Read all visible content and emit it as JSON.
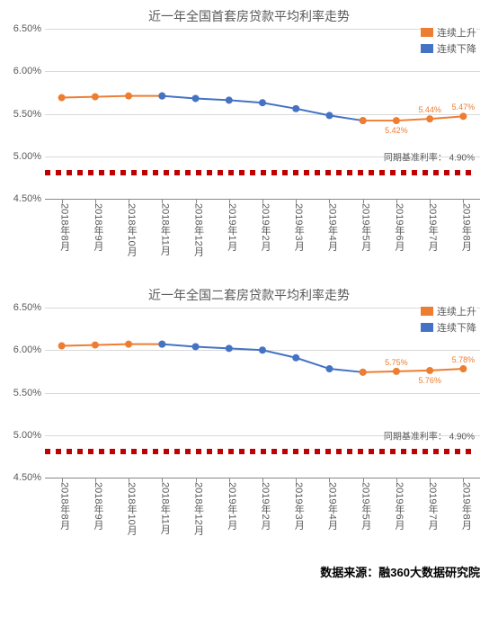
{
  "source_label": "数据来源：融360大数据研究院",
  "shared": {
    "y_ticks": [
      "4.50%",
      "5.00%",
      "5.50%",
      "6.00%",
      "6.50%"
    ],
    "y_values": [
      4.5,
      5.0,
      5.5,
      6.0,
      6.5
    ],
    "ylim": [
      4.5,
      6.5
    ],
    "categories": [
      "2018年8月",
      "2018年9月",
      "2018年10月",
      "2018年11月",
      "2018年12月",
      "2019年1月",
      "2019年2月",
      "2019年3月",
      "2019年4月",
      "2019年5月",
      "2019年6月",
      "2019年7月",
      "2019年8月"
    ],
    "legend": [
      {
        "label": "连续上升",
        "color": "#ed7d31"
      },
      {
        "label": "连续下降",
        "color": "#4472c4"
      }
    ],
    "baseline": {
      "label_prefix": "同期基准利率：",
      "value_text": "4.90%",
      "value": 4.9,
      "dot_color": "#c00000",
      "dot_size": 6,
      "dot_gap": 6
    },
    "grid_color": "#d9d9d9",
    "axis_font_color": "#595959",
    "marker_size": 4,
    "line_width": 2
  },
  "chart1": {
    "title": "近一年全国首套房贷款平均利率走势",
    "segments": [
      {
        "color": "#ed7d31",
        "idx": [
          0,
          1,
          2,
          3
        ],
        "vals": [
          5.69,
          5.7,
          5.71,
          5.71
        ]
      },
      {
        "color": "#4472c4",
        "idx": [
          3,
          4,
          5,
          6,
          7,
          8,
          9
        ],
        "vals": [
          5.71,
          5.68,
          5.66,
          5.63,
          5.56,
          5.48,
          5.42
        ]
      },
      {
        "color": "#ed7d31",
        "idx": [
          9,
          10,
          11,
          12
        ],
        "vals": [
          5.42,
          5.42,
          5.44,
          5.47
        ]
      }
    ],
    "labels": [
      {
        "idx": 10,
        "text": "5.42%",
        "pos": "below",
        "color": "#ed7d31"
      },
      {
        "idx": 11,
        "text": "5.44%",
        "pos": "above",
        "color": "#ed7d31"
      },
      {
        "idx": 12,
        "text": "5.47%",
        "pos": "above",
        "color": "#ed7d31"
      }
    ]
  },
  "chart2": {
    "title": "近一年全国二套房贷款平均利率走势",
    "segments": [
      {
        "color": "#ed7d31",
        "idx": [
          0,
          1,
          2,
          3
        ],
        "vals": [
          6.05,
          6.06,
          6.07,
          6.07
        ]
      },
      {
        "color": "#4472c4",
        "idx": [
          3,
          4,
          5,
          6,
          7,
          8,
          9
        ],
        "vals": [
          6.07,
          6.04,
          6.02,
          6.0,
          5.91,
          5.78,
          5.74
        ]
      },
      {
        "color": "#ed7d31",
        "idx": [
          9,
          10,
          11,
          12
        ],
        "vals": [
          5.74,
          5.75,
          5.76,
          5.78
        ]
      }
    ],
    "labels": [
      {
        "idx": 10,
        "text": "5.75%",
        "pos": "above",
        "color": "#ed7d31"
      },
      {
        "idx": 11,
        "text": "5.76%",
        "pos": "below",
        "color": "#ed7d31"
      },
      {
        "idx": 12,
        "text": "5.78%",
        "pos": "above",
        "color": "#ed7d31"
      }
    ]
  }
}
